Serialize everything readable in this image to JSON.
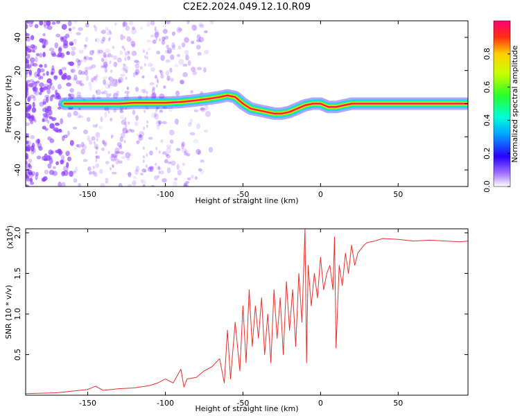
{
  "title": "C2E2.2024.049.12.10.R09",
  "colors": {
    "signal_line": "#e8302b",
    "spectrogram_track": [
      "#1a00ff",
      "#00d8ff",
      "#38ff38",
      "#ffdc00",
      "#ff1a40"
    ],
    "noise": "#8a3cff",
    "axes": "#000000"
  },
  "chart_data": [
    {
      "type": "heatmap",
      "panel": "top",
      "xlabel": "Height of straight line (km)",
      "ylabel": "Frequency (Hz)",
      "xlim": [
        -190,
        95
      ],
      "ylim": [
        -50,
        50
      ],
      "xticks": [
        -150,
        -100,
        -50,
        0,
        50
      ],
      "yticks": [
        -40,
        -20,
        0,
        20,
        40
      ],
      "grid": false,
      "colorbar": {
        "label": "Normalized spectral amplitude",
        "range": [
          0.0,
          1.0
        ],
        "ticks": [
          0.0,
          0.2,
          0.4,
          0.6,
          0.8
        ]
      },
      "dominant_frequency_track": {
        "x": [
          -165,
          -150,
          -140,
          -130,
          -120,
          -110,
          -100,
          -90,
          -80,
          -72,
          -65,
          -60,
          -55,
          -50,
          -45,
          -40,
          -35,
          -30,
          -25,
          -20,
          -15,
          -10,
          -5,
          0,
          5,
          10,
          15,
          20,
          40,
          60,
          80,
          95
        ],
        "y": [
          0,
          0,
          0,
          0,
          0.5,
          0.5,
          0.5,
          1,
          2,
          3,
          4,
          5,
          4,
          0,
          -3,
          -4,
          -5,
          -6,
          -6,
          -5,
          -3,
          -1,
          0,
          0,
          -2,
          -2,
          -1,
          0,
          0,
          0,
          0,
          0
        ]
      }
    },
    {
      "type": "line",
      "panel": "bottom",
      "xlabel": "Height of straight line (km)",
      "ylabel": "SNR (10 * v/v)",
      "scale_label": "(x10",
      "scale_exp": "4",
      "scale_close": ")",
      "xlim": [
        -190,
        95
      ],
      "ylim": [
        0,
        2.05
      ],
      "xticks": [
        -150,
        -100,
        -50,
        0,
        50
      ],
      "yticks": [
        0.5,
        1.0,
        1.5,
        2.0
      ],
      "grid": false,
      "series": [
        {
          "x": [
            -190,
            -170,
            -160,
            -150,
            -145,
            -140,
            -130,
            -120,
            -110,
            -105,
            -100,
            -95,
            -90,
            -88,
            -86,
            -80,
            -75,
            -70,
            -65,
            -62,
            -60,
            -58,
            -55,
            -52,
            -50,
            -48,
            -46,
            -44,
            -42,
            -40,
            -38,
            -36,
            -34,
            -32,
            -30,
            -28,
            -26,
            -24,
            -22,
            -20,
            -18,
            -16,
            -14,
            -12,
            -10,
            -9,
            -8,
            -6,
            -4,
            -2,
            0,
            2,
            4,
            6,
            8,
            9,
            10,
            12,
            14,
            16,
            18,
            20,
            22,
            24,
            26,
            28,
            30,
            35,
            40,
            50,
            60,
            70,
            80,
            90,
            95
          ],
          "y": [
            0.02,
            0.03,
            0.05,
            0.07,
            0.11,
            0.06,
            0.08,
            0.09,
            0.12,
            0.15,
            0.2,
            0.15,
            0.32,
            0.1,
            0.2,
            0.22,
            0.3,
            0.35,
            0.45,
            0.15,
            0.8,
            0.2,
            0.9,
            0.3,
            1.1,
            0.4,
            1.3,
            0.6,
            1.1,
            0.7,
            1.2,
            0.5,
            1.0,
            0.4,
            1.3,
            0.7,
            1.2,
            0.5,
            1.4,
            0.8,
            1.3,
            0.6,
            1.5,
            0.9,
            2.05,
            0.4,
            1.6,
            1.1,
            1.5,
            1.2,
            1.7,
            1.3,
            1.5,
            1.6,
            1.3,
            1.95,
            0.58,
            1.6,
            1.35,
            1.75,
            1.5,
            1.85,
            1.6,
            1.75,
            1.8,
            1.85,
            1.88,
            1.9,
            1.93,
            1.92,
            1.9,
            1.91,
            1.9,
            1.89,
            1.9
          ]
        }
      ]
    }
  ]
}
